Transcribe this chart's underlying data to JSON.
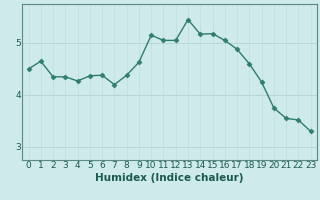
{
  "x": [
    0,
    1,
    2,
    3,
    4,
    5,
    6,
    7,
    8,
    9,
    10,
    11,
    12,
    13,
    14,
    15,
    16,
    17,
    18,
    19,
    20,
    21,
    22,
    23
  ],
  "y": [
    4.5,
    4.65,
    4.35,
    4.35,
    4.27,
    4.37,
    4.38,
    4.2,
    4.38,
    4.63,
    5.15,
    5.05,
    5.05,
    5.45,
    5.17,
    5.18,
    5.05,
    4.88,
    4.6,
    4.25,
    3.75,
    3.55,
    3.52,
    3.3
  ],
  "line_color": "#2e7d6e",
  "marker": "D",
  "markersize": 2.5,
  "linewidth": 1.0,
  "background_color": "#ceeaea",
  "grid_color_v": "#c0dcdc",
  "grid_color_h": "#b8d4d4",
  "xlabel": "Humidex (Indice chaleur)",
  "tick_fontsize": 6.5,
  "xlabel_fontsize": 7.5,
  "ylim": [
    2.75,
    5.75
  ],
  "yticks": [
    3,
    4,
    5
  ],
  "xticks": [
    0,
    1,
    2,
    3,
    4,
    5,
    6,
    7,
    8,
    9,
    10,
    11,
    12,
    13,
    14,
    15,
    16,
    17,
    18,
    19,
    20,
    21,
    22,
    23
  ],
  "spine_color": "#5a8a80",
  "text_color": "#1a5a50"
}
